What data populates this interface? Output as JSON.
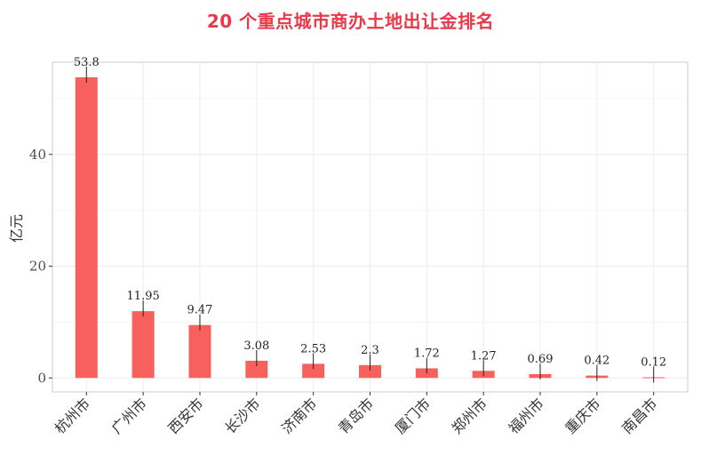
{
  "title": "20 个重点城市商办土地出让金排名",
  "chart_data": {
    "type": "bar",
    "title": "20 个重点城市商办土地出让金排名",
    "ylabel": "亿元",
    "xlabel": "",
    "categories": [
      "杭州市",
      "广州市",
      "西安市",
      "长沙市",
      "济南市",
      "青岛市",
      "厦门市",
      "郑州市",
      "福州市",
      "重庆市",
      "南昌市"
    ],
    "values": [
      53.8,
      11.95,
      9.47,
      3.08,
      2.53,
      2.3,
      1.72,
      1.27,
      0.69,
      0.42,
      0.12
    ],
    "value_labels": [
      "53.8",
      "11.95",
      "9.47",
      "3.08",
      "2.53",
      "2.3",
      "1.72",
      "1.27",
      "0.69",
      "0.42",
      "0.12"
    ],
    "yticks": [
      0,
      20,
      40
    ],
    "ytick_labels": [
      "0",
      "20",
      "40"
    ],
    "ylim": [
      -2.5,
      56.5
    ],
    "grid": true,
    "legend": "none",
    "colors": {
      "bar": "#f8605d",
      "title": "#e8394a",
      "panel_border": "#cccccc",
      "grid": "#ececec"
    }
  }
}
